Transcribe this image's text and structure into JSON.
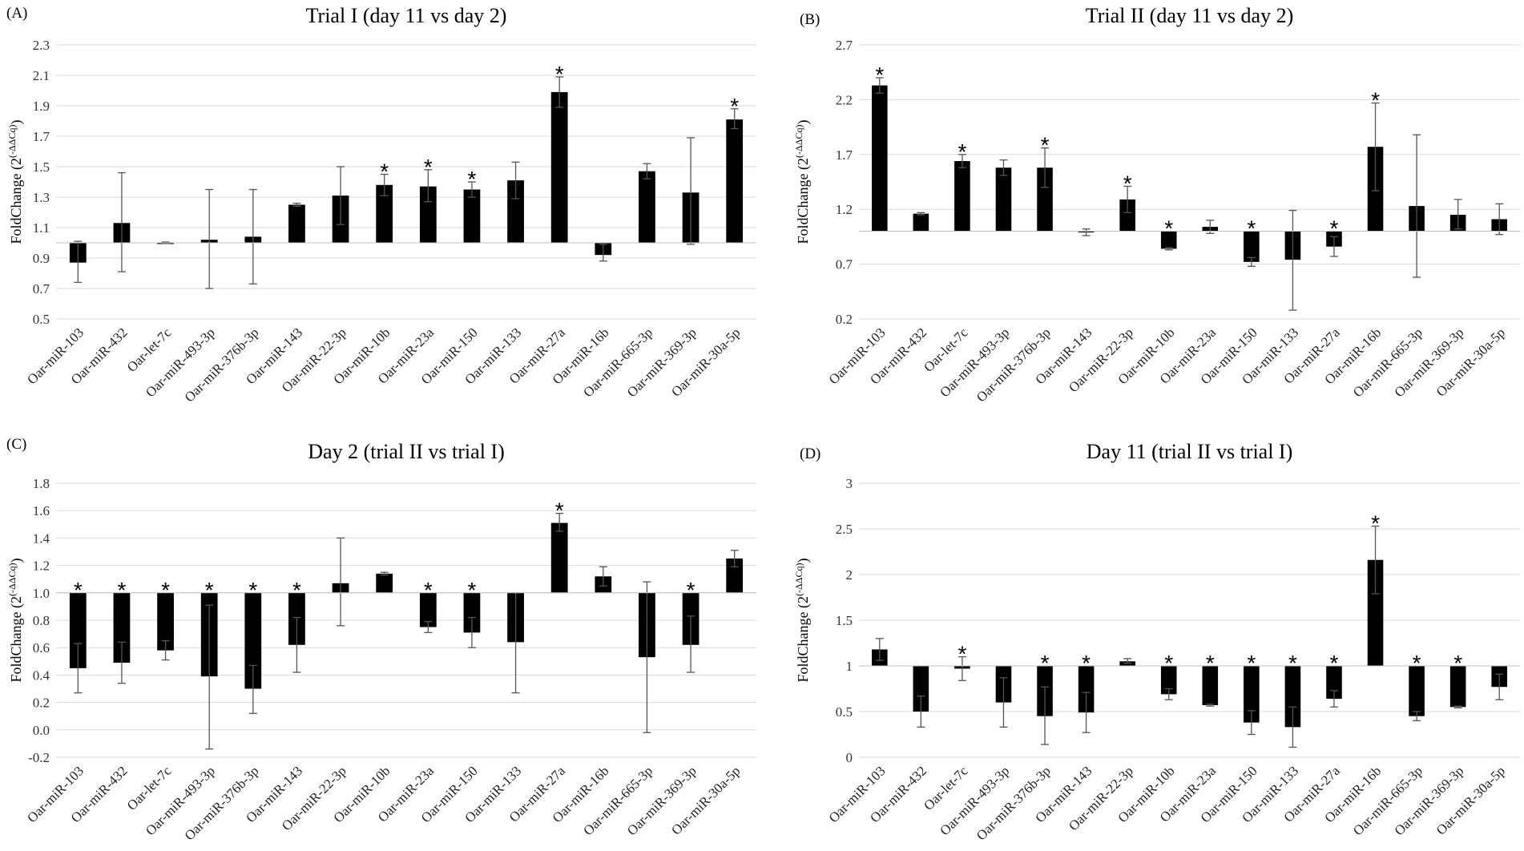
{
  "figure": {
    "ylabel_base": "FoldChange (2",
    "ylabel_sup": "(-ΔΔCq)",
    "ylabel_close": ")"
  },
  "chart_data": [
    {
      "type": "bar",
      "panel": "(A)",
      "title": "Trial I (day 11 vs day 2)",
      "ylabel": "FoldChange (2(-ΔΔCq))",
      "baseline": 1.0,
      "ylim": [
        0.5,
        2.3
      ],
      "yticks": [
        "0.5",
        "0.7",
        "0.9",
        "1.1",
        "1.3",
        "1.5",
        "1.7",
        "1.9",
        "2.1",
        "2.3"
      ],
      "categories": [
        "Oar-miR-103",
        "Oar-miR-432",
        "Oar-let-7c",
        "Oar-miR-493-3p",
        "Oar-miR-376b-3p",
        "Oar-miR-143",
        "Oar-miR-22-3p",
        "Oar-miR-10b",
        "Oar-miR-23a",
        "Oar-miR-150",
        "Oar-miR-133",
        "Oar-miR-27a",
        "Oar-miR-16b",
        "Oar-miR-665-3p",
        "Oar-miR-369-3p",
        "Oar-miR-30a-5p"
      ],
      "values": [
        0.87,
        1.13,
        1.0,
        1.02,
        1.04,
        1.25,
        1.31,
        1.38,
        1.37,
        1.35,
        1.41,
        1.99,
        0.92,
        1.47,
        1.33,
        1.81
      ],
      "err_low": [
        0.74,
        0.81,
        0.995,
        0.7,
        0.73,
        1.24,
        1.12,
        1.31,
        1.27,
        1.3,
        1.29,
        1.89,
        0.88,
        1.42,
        0.99,
        1.75
      ],
      "err_high": [
        1.01,
        1.46,
        1.005,
        1.35,
        1.35,
        1.26,
        1.5,
        1.45,
        1.48,
        1.4,
        1.53,
        2.09,
        0.99,
        1.52,
        1.69,
        1.88
      ],
      "significant": [
        false,
        false,
        false,
        false,
        false,
        false,
        false,
        true,
        true,
        true,
        false,
        true,
        false,
        false,
        false,
        true
      ],
      "star_label": "*"
    },
    {
      "type": "bar",
      "panel": "(B)",
      "title": "Trial II (day 11 vs day 2)",
      "ylabel": "FoldChange (2(-ΔΔCq))",
      "baseline": 1.0,
      "ylim": [
        0.2,
        2.7
      ],
      "yticks": [
        "0.2",
        "0.7",
        "1.2",
        "1.7",
        "2.2",
        "2.7"
      ],
      "categories": [
        "Oar-miR-103",
        "Oar-miR-432",
        "Oar-let-7c",
        "Oar-miR-493-3p",
        "Oar-miR-376b-3p",
        "Oar-miR-143",
        "Oar-miR-22-3p",
        "Oar-miR-10b",
        "Oar-miR-23a",
        "Oar-miR-150",
        "Oar-miR-133",
        "Oar-miR-27a",
        "Oar-miR-16b",
        "Oar-miR-665-3p",
        "Oar-miR-369-3p",
        "Oar-miR-30a-5p"
      ],
      "values": [
        2.33,
        1.16,
        1.64,
        1.58,
        1.58,
        0.99,
        1.29,
        0.84,
        1.04,
        0.72,
        0.74,
        0.86,
        1.77,
        1.23,
        1.15,
        1.11
      ],
      "err_low": [
        2.26,
        1.15,
        1.58,
        1.51,
        1.4,
        0.96,
        1.17,
        0.83,
        0.98,
        0.68,
        0.28,
        0.77,
        1.37,
        0.58,
        1.02,
        0.97
      ],
      "err_high": [
        2.4,
        1.17,
        1.7,
        1.65,
        1.76,
        1.02,
        1.41,
        0.85,
        1.1,
        0.76,
        1.19,
        0.95,
        2.17,
        1.88,
        1.29,
        1.25
      ],
      "significant": [
        true,
        false,
        true,
        false,
        true,
        false,
        true,
        true,
        false,
        true,
        false,
        true,
        true,
        false,
        false,
        false
      ],
      "star_label": "*"
    },
    {
      "type": "bar",
      "panel": "(C)",
      "title": "Day 2 (trial II vs trial I)",
      "ylabel": "FoldChange (2(-ΔΔCq))",
      "baseline": 1.0,
      "ylim": [
        -0.2,
        1.8
      ],
      "yticks": [
        "-0.2",
        "0.0",
        "0.2",
        "0.4",
        "0.6",
        "0.8",
        "1.0",
        "1.2",
        "1.4",
        "1.6",
        "1.8"
      ],
      "categories": [
        "Oar-miR-103",
        "Oar-miR-432",
        "Oar-let-7c",
        "Oar-miR-493-3p",
        "Oar-miR-376b-3p",
        "Oar-miR-143",
        "Oar-miR-22-3p",
        "Oar-miR-10b",
        "Oar-miR-23a",
        "Oar-miR-150",
        "Oar-miR-133",
        "Oar-miR-27a",
        "Oar-miR-16b",
        "Oar-miR-665-3p",
        "Oar-miR-369-3p",
        "Oar-miR-30a-5p"
      ],
      "values": [
        0.45,
        0.49,
        0.58,
        0.39,
        0.3,
        0.62,
        1.07,
        1.14,
        0.75,
        0.71,
        0.64,
        1.51,
        1.12,
        0.53,
        0.62,
        1.25
      ],
      "err_low": [
        0.27,
        0.34,
        0.51,
        -0.14,
        0.12,
        0.42,
        0.76,
        1.13,
        0.71,
        0.6,
        0.27,
        1.45,
        1.05,
        -0.02,
        0.42,
        1.19
      ],
      "err_high": [
        0.63,
        0.64,
        0.65,
        0.91,
        0.47,
        0.82,
        1.4,
        1.15,
        0.79,
        0.82,
        1.0,
        1.58,
        1.19,
        1.08,
        0.83,
        1.31
      ],
      "significant": [
        true,
        true,
        true,
        true,
        true,
        true,
        false,
        false,
        true,
        true,
        false,
        true,
        false,
        false,
        true,
        false
      ],
      "star_label": "*"
    },
    {
      "type": "bar",
      "panel": "(D)",
      "title": "Day 11 (trial II vs trial I)",
      "ylabel": "FoldChange (2(-ΔΔCq))",
      "baseline": 1.0,
      "ylim": [
        0,
        3
      ],
      "yticks": [
        "0",
        "0.5",
        "1",
        "1.5",
        "2",
        "2.5",
        "3"
      ],
      "categories": [
        "Oar-miR-103",
        "Oar-miR-432",
        "Oar-let-7c",
        "Oar-miR-493-3p",
        "Oar-miR-376b-3p",
        "Oar-miR-143",
        "Oar-miR-22-3p",
        "Oar-miR-10b",
        "Oar-miR-23a",
        "Oar-miR-150",
        "Oar-miR-133",
        "Oar-miR-27a",
        "Oar-miR-16b",
        "Oar-miR-665-3p",
        "Oar-miR-369-3p",
        "Oar-miR-30a-5p"
      ],
      "values": [
        1.18,
        0.5,
        0.97,
        0.6,
        0.45,
        0.49,
        1.05,
        0.69,
        0.57,
        0.38,
        0.33,
        0.64,
        2.16,
        0.45,
        0.55,
        0.77
      ],
      "err_low": [
        1.06,
        0.33,
        0.84,
        0.33,
        0.14,
        0.27,
        1.03,
        0.63,
        0.56,
        0.25,
        0.11,
        0.55,
        1.79,
        0.4,
        0.54,
        0.63
      ],
      "err_high": [
        1.3,
        0.67,
        1.1,
        0.87,
        0.77,
        0.71,
        1.08,
        0.75,
        0.58,
        0.51,
        0.55,
        0.73,
        2.53,
        0.5,
        0.56,
        0.91
      ],
      "significant": [
        false,
        false,
        true,
        false,
        true,
        true,
        false,
        true,
        true,
        true,
        true,
        true,
        true,
        true,
        true,
        false
      ],
      "star_label": "*"
    }
  ]
}
